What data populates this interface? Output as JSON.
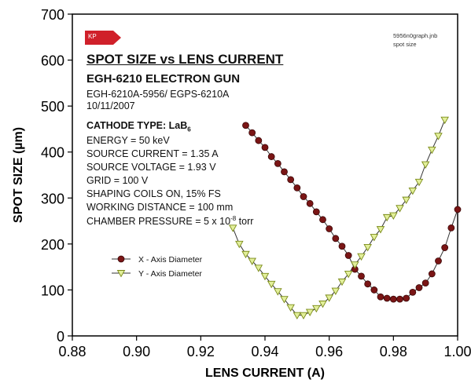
{
  "info": {
    "title": "SPOT SIZE vs LENS CURRENT",
    "subtitle": "EGH-6210 ELECTRON GUN",
    "model": "EGH-6210A-5956/ EGPS-6210A",
    "date": "10/11/2007",
    "cathode_prefix": "CATHODE TYPE: LaB",
    "cathode_sub": "6",
    "energy": "ENERGY = 50 keV",
    "source_current": "SOURCE CURRENT = 1.35 A",
    "source_voltage": "SOURCE VOLTAGE = 1.93 V",
    "grid": "GRID = 100 V",
    "shaping_coils": "SHAPING COILS ON, 15% FS",
    "working_distance": "WORKING DISTANCE = 100 mm",
    "pressure_prefix": "CHAMBER PRESSURE = 5 x 10",
    "pressure_exp": "-8",
    "pressure_unit": " torr"
  },
  "corner_note": {
    "line1": "5956n0graph.jnb",
    "line2": "spot size"
  },
  "badge": {
    "text": "KP",
    "color": "#d0202a"
  },
  "chart_data": {
    "type": "line",
    "xlabel": "LENS CURRENT (A)",
    "ylabel": "SPOT SIZE (µm)",
    "xlim": [
      0.88,
      1.0
    ],
    "ylim": [
      0,
      700
    ],
    "xticks": [
      "0.88",
      "0.90",
      "0.92",
      "0.94",
      "0.96",
      "0.98",
      "1.00"
    ],
    "yticks": [
      "0",
      "100",
      "200",
      "300",
      "400",
      "500",
      "600",
      "700"
    ],
    "grid": false,
    "legend_position": "lower-left",
    "series": [
      {
        "name": "X - Axis Diameter",
        "color": "#7a1515",
        "marker": "circle",
        "x": [
          0.934,
          0.936,
          0.938,
          0.94,
          0.942,
          0.944,
          0.946,
          0.948,
          0.95,
          0.952,
          0.954,
          0.956,
          0.958,
          0.96,
          0.962,
          0.964,
          0.966,
          0.968,
          0.97,
          0.972,
          0.974,
          0.976,
          0.978,
          0.98,
          0.982,
          0.984,
          0.986,
          0.988,
          0.99,
          0.992,
          0.994,
          0.996,
          0.998,
          1.0
        ],
        "y": [
          458,
          442,
          425,
          410,
          390,
          375,
          357,
          340,
          322,
          303,
          288,
          270,
          253,
          233,
          212,
          195,
          175,
          145,
          130,
          113,
          100,
          85,
          82,
          80,
          80,
          82,
          95,
          105,
          115,
          135,
          163,
          192,
          235,
          275
        ]
      },
      {
        "name": "Y - Axis Diameter",
        "color": "#7a8a18",
        "fill": "#e2ef9a",
        "marker": "triangle-down",
        "x": [
          0.93,
          0.932,
          0.934,
          0.936,
          0.938,
          0.94,
          0.942,
          0.944,
          0.946,
          0.948,
          0.95,
          0.952,
          0.954,
          0.956,
          0.958,
          0.96,
          0.962,
          0.964,
          0.966,
          0.968,
          0.97,
          0.972,
          0.974,
          0.976,
          0.978,
          0.98,
          0.982,
          0.984,
          0.986,
          0.988,
          0.99,
          0.992,
          0.994,
          0.996
        ],
        "y": [
          235,
          200,
          178,
          163,
          148,
          130,
          113,
          97,
          80,
          62,
          45,
          45,
          52,
          60,
          70,
          83,
          98,
          118,
          135,
          155,
          173,
          193,
          215,
          232,
          258,
          262,
          278,
          296,
          316,
          335,
          373,
          405,
          435,
          470
        ]
      }
    ]
  }
}
